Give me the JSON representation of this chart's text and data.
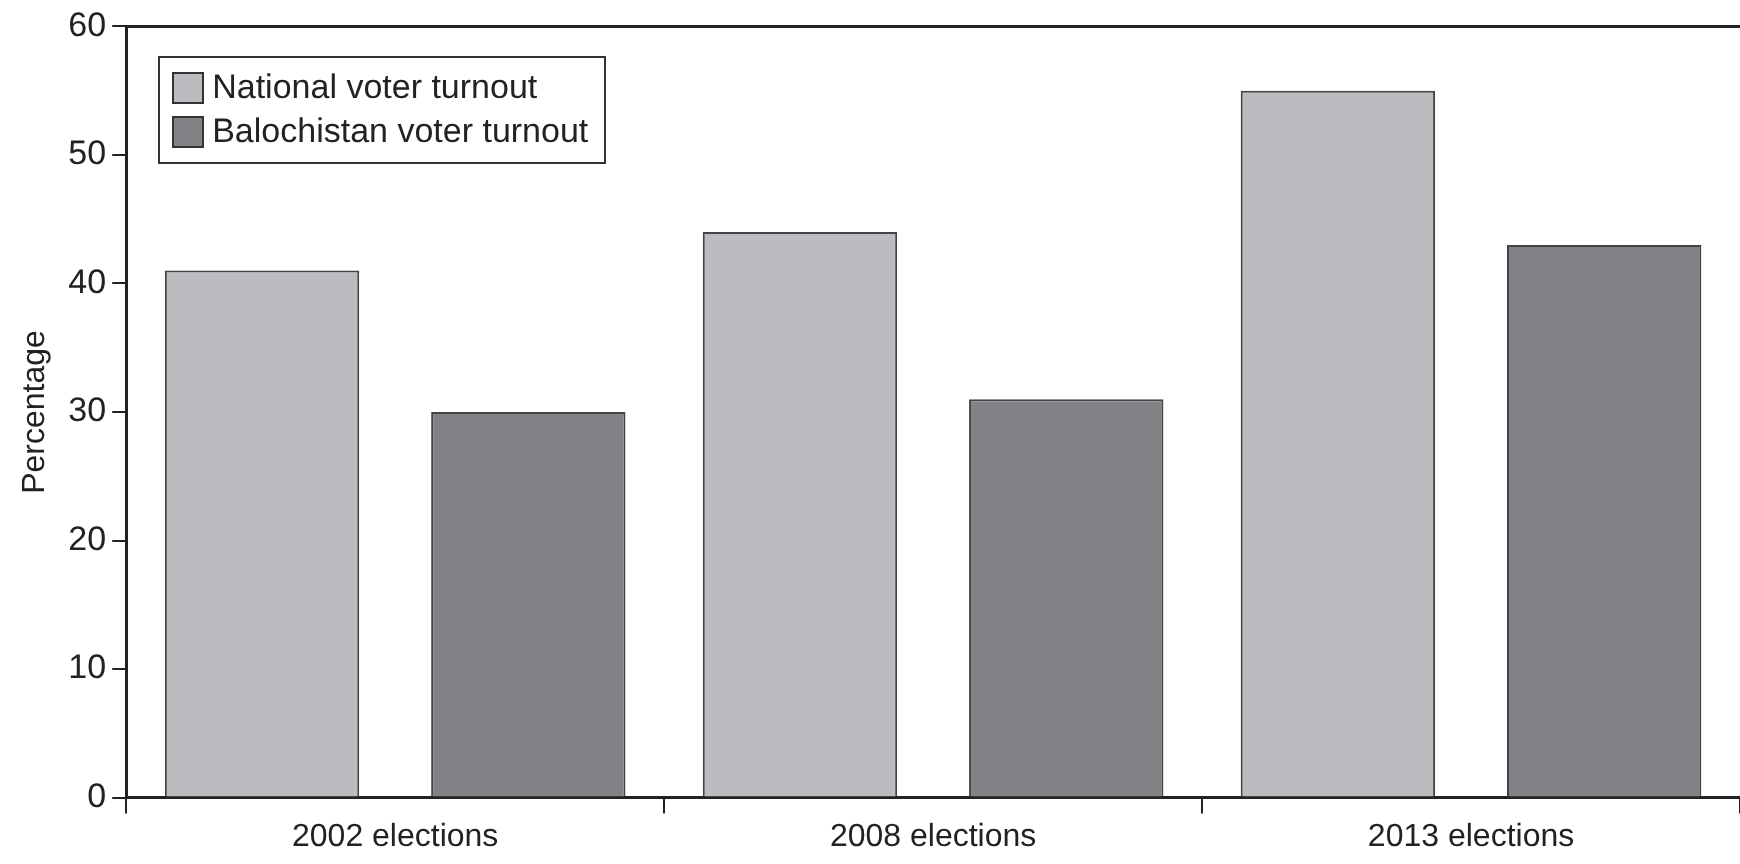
{
  "chart_data": {
    "type": "bar",
    "ylabel": "Percentage",
    "categories": [
      "2002 elections",
      "2008 elections",
      "2013 elections"
    ],
    "series": [
      {
        "name": "National voter turnout",
        "color": "#bbbcc0",
        "values": [
          41,
          44,
          55
        ]
      },
      {
        "name": "Balochistan voter turnout",
        "color": "#818286",
        "values": [
          30,
          31,
          43
        ]
      }
    ],
    "ylim": [
      0,
      60
    ],
    "yticks": [
      0,
      10,
      20,
      30,
      40,
      50,
      60
    ],
    "grid": false,
    "legend": "top left"
  }
}
